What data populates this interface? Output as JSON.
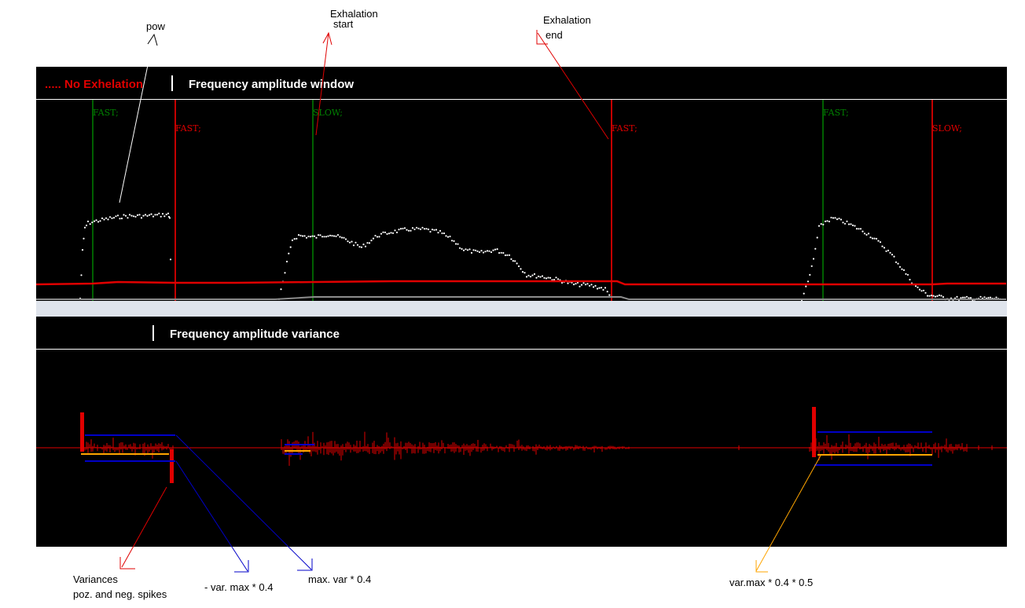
{
  "chart_data": [
    {
      "type": "line",
      "title": "Frequency amplitude window",
      "legend": "..... No Exhelation",
      "event_markers": [
        {
          "label": "FAST;",
          "color": "#008000",
          "x": 118
        },
        {
          "label": "FAST;",
          "color": "#e00000",
          "x": 223
        },
        {
          "label": "SLOW;",
          "color": "#008000",
          "x": 398
        },
        {
          "label": "FAST;",
          "color": "#e00000",
          "x": 778
        },
        {
          "label": "FAST;",
          "color": "#008000",
          "x": 1047
        },
        {
          "label": "SLOW;",
          "color": "#e00000",
          "x": 1186
        }
      ],
      "series": [
        {
          "role": "pow",
          "color": "#ffffff",
          "segments": [
            [
              [
                102,
                380
              ],
              [
                105,
                320
              ],
              [
                108,
                290
              ],
              [
                112,
                284
              ],
              [
                120,
                282
              ],
              [
                140,
                278
              ],
              [
                160,
                275
              ],
              [
                180,
                275
              ],
              [
                200,
                274
              ],
              [
                214,
                273
              ],
              [
                216,
                278
              ],
              [
                218,
                380
              ]
            ],
            [
              [
                355,
                380
              ],
              [
                360,
                360
              ],
              [
                365,
                335
              ],
              [
                372,
                305
              ],
              [
                380,
                300
              ],
              [
                400,
                302
              ],
              [
                420,
                298
              ],
              [
                440,
                305
              ],
              [
                460,
                315
              ],
              [
                480,
                300
              ],
              [
                500,
                295
              ],
              [
                520,
                292
              ],
              [
                540,
                292
              ],
              [
                560,
                296
              ],
              [
                575,
                305
              ],
              [
                590,
                318
              ],
              [
                610,
                322
              ],
              [
                630,
                318
              ],
              [
                648,
                325
              ],
              [
                660,
                338
              ],
              [
                670,
                350
              ],
              [
                690,
                352
              ],
              [
                710,
                356
              ],
              [
                730,
                362
              ],
              [
                750,
                363
              ],
              [
                770,
                368
              ],
              [
                778,
                380
              ]
            ],
            [
              [
                1020,
                380
              ],
              [
                1028,
                360
              ],
              [
                1035,
                330
              ],
              [
                1042,
                290
              ],
              [
                1050,
                282
              ],
              [
                1060,
                278
              ],
              [
                1075,
                283
              ],
              [
                1090,
                290
              ],
              [
                1105,
                298
              ],
              [
                1120,
                310
              ],
              [
                1135,
                325
              ],
              [
                1150,
                345
              ],
              [
                1165,
                365
              ],
              [
                1180,
                375
              ],
              [
                1195,
                378
              ],
              [
                1210,
                380
              ],
              [
                1230,
                380
              ],
              [
                1250,
                380
              ],
              [
                1275,
                380
              ]
            ]
          ]
        },
        {
          "role": "threshold",
          "color": "#e00000",
          "points": [
            [
              46,
              362
            ],
            [
              118,
              361
            ],
            [
              150,
              359
            ],
            [
              223,
              360
            ],
            [
              300,
              360
            ],
            [
              400,
              359
            ],
            [
              500,
              358
            ],
            [
              700,
              358
            ],
            [
              785,
              358
            ],
            [
              795,
              362
            ],
            [
              900,
              362
            ],
            [
              1000,
              362
            ],
            [
              1186,
              362
            ],
            [
              1205,
              361
            ],
            [
              1280,
              361
            ]
          ]
        },
        {
          "role": "baseline",
          "color": "#8c8c8c",
          "points": [
            [
              46,
              381
            ],
            [
              350,
              381
            ],
            [
              400,
              378
            ],
            [
              700,
              378
            ],
            [
              790,
              378
            ],
            [
              800,
              381
            ],
            [
              1280,
              381
            ]
          ]
        }
      ]
    },
    {
      "type": "line",
      "title": "Frequency amplitude variance",
      "center_line": {
        "color": "#e00000",
        "y": 570
      },
      "thresholds": [
        {
          "name": "max. var * 0.4",
          "color": "#0000c8",
          "segments": [
            [
              108,
              554,
              223,
              554
            ],
            [
              1040,
              550,
              1186,
              550
            ]
          ]
        },
        {
          "name": "- var. max * 0.4",
          "color": "#0000c8",
          "segments": [
            [
              108,
              587,
              223,
              587
            ],
            [
              1036,
              592,
              1186,
              592
            ]
          ]
        },
        {
          "name": "var.max * 0.4 * 0.5",
          "color": "#ffa500",
          "segments": [
            [
              103,
              578,
              215,
              578
            ],
            [
              1040,
              579,
              1186,
              579
            ]
          ]
        }
      ],
      "spikes": [
        {
          "x": 104,
          "top": 525,
          "bottom": 575
        },
        {
          "x": 218,
          "top": 572,
          "bottom": 615
        },
        {
          "x": 1035,
          "top": 518,
          "bottom": 582
        }
      ]
    }
  ],
  "annotations": {
    "pow": "pow",
    "exhalation_start": [
      "Exhalation",
      "start"
    ],
    "exhalation_end": [
      "Exhalation",
      "end"
    ],
    "variances": [
      "Variances",
      "poz. and neg. spikes"
    ],
    "neg_var": "- var. max * 0.4",
    "max_var": "max. var * 0.4",
    "half_var": "var.max * 0.4 * 0.5"
  },
  "colors": {
    "panel_bg": "#000000",
    "separator": "#dfe4ec"
  }
}
